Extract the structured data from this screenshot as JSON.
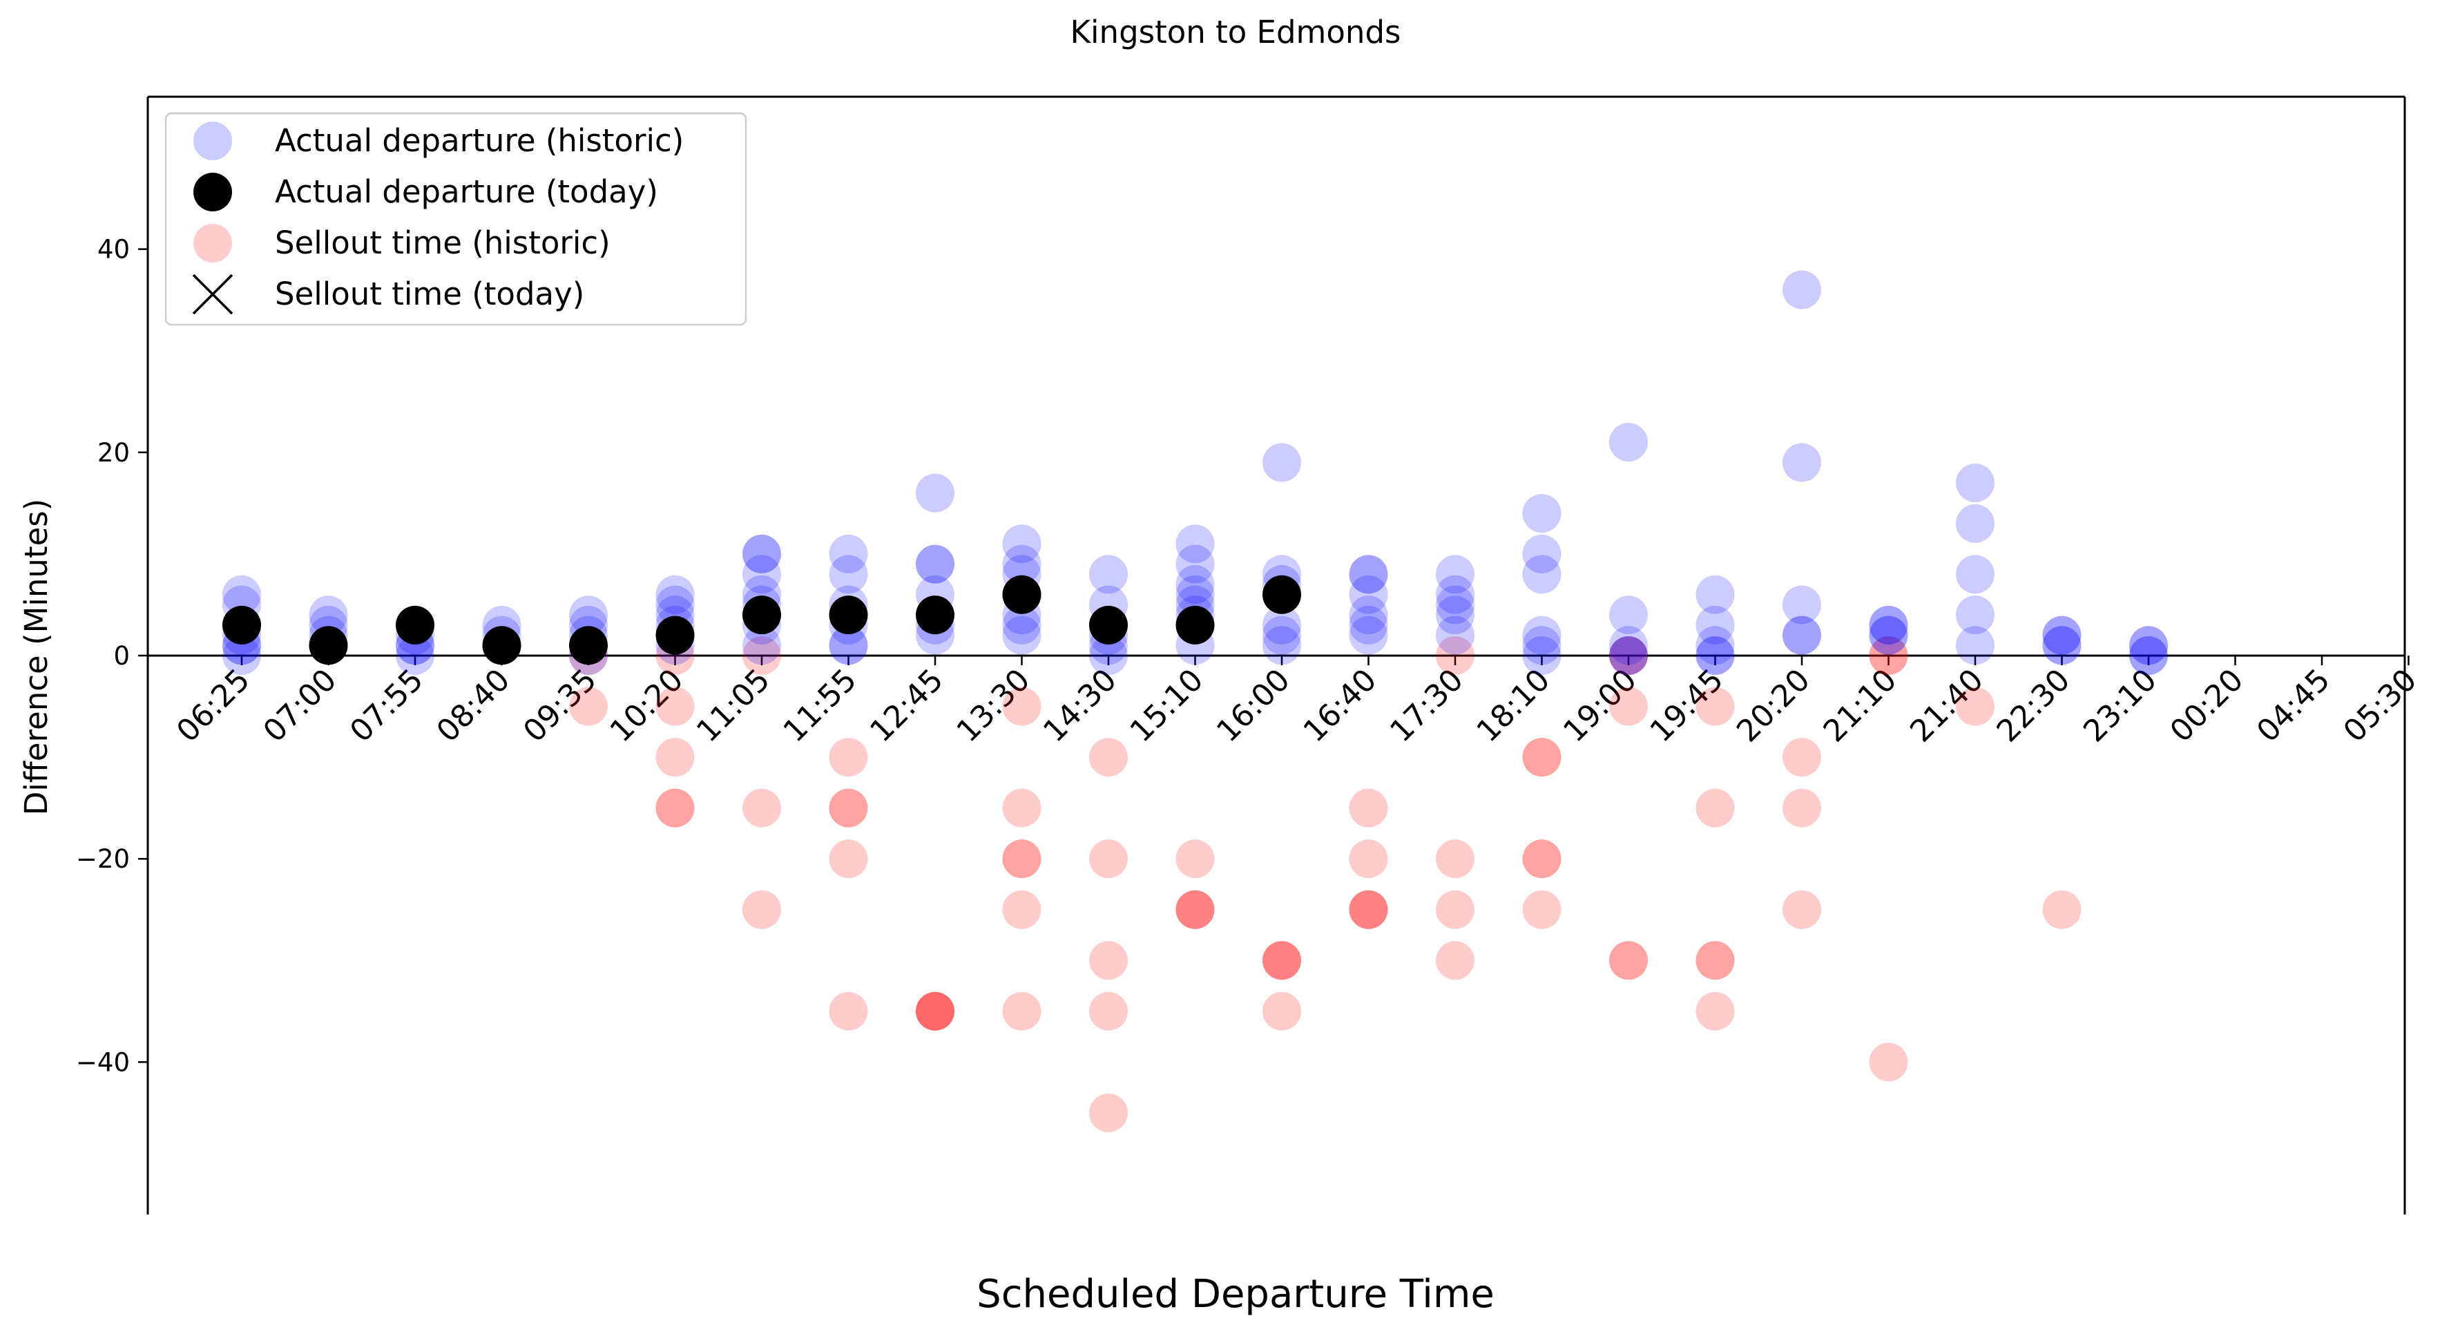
{
  "chart_data": {
    "type": "scatter",
    "title": "Kingston to Edmonds",
    "xlabel": "Scheduled Departure Time",
    "ylabel": "Difference (Minutes)",
    "ylim": [
      -55,
      55
    ],
    "yticks": [
      -40,
      -20,
      0,
      20,
      40
    ],
    "grid": false,
    "legend_placement": "top-left",
    "zero_line": true,
    "categories": [
      "06:25",
      "07:00",
      "07:55",
      "08:40",
      "09:35",
      "10:20",
      "11:05",
      "11:55",
      "12:45",
      "13:30",
      "14:30",
      "15:10",
      "16:00",
      "16:40",
      "17:30",
      "18:10",
      "19:00",
      "19:45",
      "20:20",
      "21:10",
      "21:40",
      "22:30",
      "23:10",
      "00:20",
      "04:45",
      "05:30"
    ],
    "colors": {
      "actual_historic": "#0000ff",
      "actual_today": "#000000",
      "sellout_historic": "#ff0000",
      "sellout_today": "#000000"
    },
    "legend": [
      {
        "label": "Actual departure (historic)",
        "marker": "circle",
        "color": "#0000ff",
        "opacity": 0.2
      },
      {
        "label": "Actual departure (today)",
        "marker": "circle",
        "color": "#000000",
        "opacity": 1
      },
      {
        "label": "Sellout time (historic)",
        "marker": "circle",
        "color": "#ff0000",
        "opacity": 0.2
      },
      {
        "label": "Sellout time (today)",
        "marker": "x",
        "color": "#000000",
        "opacity": 1
      }
    ],
    "series": [
      {
        "name": "Actual departure (historic)",
        "points": [
          {
            "x": "06:25",
            "y": 6
          },
          {
            "x": "06:25",
            "y": 5
          },
          {
            "x": "06:25",
            "y": 3
          },
          {
            "x": "06:25",
            "y": 2
          },
          {
            "x": "06:25",
            "y": 1
          },
          {
            "x": "06:25",
            "y": 1
          },
          {
            "x": "06:25",
            "y": 0
          },
          {
            "x": "07:00",
            "y": 4
          },
          {
            "x": "07:00",
            "y": 3
          },
          {
            "x": "07:00",
            "y": 2
          },
          {
            "x": "07:00",
            "y": 1
          },
          {
            "x": "07:55",
            "y": 3
          },
          {
            "x": "07:55",
            "y": 2
          },
          {
            "x": "07:55",
            "y": 1
          },
          {
            "x": "07:55",
            "y": 1
          },
          {
            "x": "07:55",
            "y": 0
          },
          {
            "x": "08:40",
            "y": 3
          },
          {
            "x": "08:40",
            "y": 2
          },
          {
            "x": "08:40",
            "y": 1
          },
          {
            "x": "09:35",
            "y": 4
          },
          {
            "x": "09:35",
            "y": 3
          },
          {
            "x": "09:35",
            "y": 2
          },
          {
            "x": "09:35",
            "y": 1
          },
          {
            "x": "09:35",
            "y": 0
          },
          {
            "x": "10:20",
            "y": 6
          },
          {
            "x": "10:20",
            "y": 5
          },
          {
            "x": "10:20",
            "y": 4
          },
          {
            "x": "10:20",
            "y": 3
          },
          {
            "x": "10:20",
            "y": 2
          },
          {
            "x": "10:20",
            "y": 1
          },
          {
            "x": "11:05",
            "y": 10
          },
          {
            "x": "11:05",
            "y": 10
          },
          {
            "x": "11:05",
            "y": 8
          },
          {
            "x": "11:05",
            "y": 6
          },
          {
            "x": "11:05",
            "y": 5
          },
          {
            "x": "11:05",
            "y": 3
          },
          {
            "x": "11:05",
            "y": 1
          },
          {
            "x": "11:55",
            "y": 10
          },
          {
            "x": "11:55",
            "y": 8
          },
          {
            "x": "11:55",
            "y": 5
          },
          {
            "x": "11:55",
            "y": 3
          },
          {
            "x": "11:55",
            "y": 1
          },
          {
            "x": "11:55",
            "y": 1
          },
          {
            "x": "12:45",
            "y": 16
          },
          {
            "x": "12:45",
            "y": 9
          },
          {
            "x": "12:45",
            "y": 9
          },
          {
            "x": "12:45",
            "y": 6
          },
          {
            "x": "12:45",
            "y": 3
          },
          {
            "x": "12:45",
            "y": 2
          },
          {
            "x": "13:30",
            "y": 11
          },
          {
            "x": "13:30",
            "y": 9
          },
          {
            "x": "13:30",
            "y": 8
          },
          {
            "x": "13:30",
            "y": 6
          },
          {
            "x": "13:30",
            "y": 4
          },
          {
            "x": "13:30",
            "y": 3
          },
          {
            "x": "13:30",
            "y": 2
          },
          {
            "x": "14:30",
            "y": 8
          },
          {
            "x": "14:30",
            "y": 5
          },
          {
            "x": "14:30",
            "y": 3
          },
          {
            "x": "14:30",
            "y": 2
          },
          {
            "x": "14:30",
            "y": 1
          },
          {
            "x": "14:30",
            "y": 0
          },
          {
            "x": "15:10",
            "y": 11
          },
          {
            "x": "15:10",
            "y": 9
          },
          {
            "x": "15:10",
            "y": 7
          },
          {
            "x": "15:10",
            "y": 6
          },
          {
            "x": "15:10",
            "y": 5
          },
          {
            "x": "15:10",
            "y": 4
          },
          {
            "x": "15:10",
            "y": 1
          },
          {
            "x": "16:00",
            "y": 19
          },
          {
            "x": "16:00",
            "y": 8
          },
          {
            "x": "16:00",
            "y": 7
          },
          {
            "x": "16:00",
            "y": 3
          },
          {
            "x": "16:00",
            "y": 2
          },
          {
            "x": "16:00",
            "y": 1
          },
          {
            "x": "16:40",
            "y": 8
          },
          {
            "x": "16:40",
            "y": 8
          },
          {
            "x": "16:40",
            "y": 6
          },
          {
            "x": "16:40",
            "y": 4
          },
          {
            "x": "16:40",
            "y": 3
          },
          {
            "x": "16:40",
            "y": 2
          },
          {
            "x": "17:30",
            "y": 8
          },
          {
            "x": "17:30",
            "y": 6
          },
          {
            "x": "17:30",
            "y": 5
          },
          {
            "x": "17:30",
            "y": 4
          },
          {
            "x": "17:30",
            "y": 2
          },
          {
            "x": "18:10",
            "y": 14
          },
          {
            "x": "18:10",
            "y": 10
          },
          {
            "x": "18:10",
            "y": 8
          },
          {
            "x": "18:10",
            "y": 2
          },
          {
            "x": "18:10",
            "y": 1
          },
          {
            "x": "18:10",
            "y": 0
          },
          {
            "x": "19:00",
            "y": 21
          },
          {
            "x": "19:00",
            "y": 4
          },
          {
            "x": "19:00",
            "y": 1
          },
          {
            "x": "19:00",
            "y": 0
          },
          {
            "x": "19:00",
            "y": 0
          },
          {
            "x": "19:45",
            "y": 6
          },
          {
            "x": "19:45",
            "y": 3
          },
          {
            "x": "19:45",
            "y": 1
          },
          {
            "x": "19:45",
            "y": 0
          },
          {
            "x": "19:45",
            "y": 0
          },
          {
            "x": "20:20",
            "y": 36
          },
          {
            "x": "20:20",
            "y": 19
          },
          {
            "x": "20:20",
            "y": 5
          },
          {
            "x": "20:20",
            "y": 2
          },
          {
            "x": "20:20",
            "y": 2
          },
          {
            "x": "21:10",
            "y": 3
          },
          {
            "x": "21:10",
            "y": 3
          },
          {
            "x": "21:10",
            "y": 2
          },
          {
            "x": "21:10",
            "y": 2
          },
          {
            "x": "21:40",
            "y": 17
          },
          {
            "x": "21:40",
            "y": 13
          },
          {
            "x": "21:40",
            "y": 8
          },
          {
            "x": "21:40",
            "y": 4
          },
          {
            "x": "21:40",
            "y": 1
          },
          {
            "x": "22:30",
            "y": 2
          },
          {
            "x": "22:30",
            "y": 2
          },
          {
            "x": "22:30",
            "y": 1
          },
          {
            "x": "22:30",
            "y": 1
          },
          {
            "x": "23:10",
            "y": 1
          },
          {
            "x": "23:10",
            "y": 1
          },
          {
            "x": "23:10",
            "y": 0
          },
          {
            "x": "23:10",
            "y": 0
          }
        ]
      },
      {
        "name": "Actual departure (today)",
        "points": [
          {
            "x": "06:25",
            "y": 3
          },
          {
            "x": "07:00",
            "y": 1
          },
          {
            "x": "07:55",
            "y": 3
          },
          {
            "x": "08:40",
            "y": 1
          },
          {
            "x": "09:35",
            "y": 1
          },
          {
            "x": "10:20",
            "y": 2
          },
          {
            "x": "11:05",
            "y": 4
          },
          {
            "x": "11:55",
            "y": 4
          },
          {
            "x": "12:45",
            "y": 4
          },
          {
            "x": "13:30",
            "y": 6
          },
          {
            "x": "14:30",
            "y": 3
          },
          {
            "x": "15:10",
            "y": 3
          },
          {
            "x": "16:00",
            "y": 6
          }
        ]
      },
      {
        "name": "Sellout time (historic)",
        "points": [
          {
            "x": "09:35",
            "y": 0
          },
          {
            "x": "09:35",
            "y": -5
          },
          {
            "x": "10:20",
            "y": 0
          },
          {
            "x": "10:20",
            "y": -5
          },
          {
            "x": "10:20",
            "y": -10
          },
          {
            "x": "10:20",
            "y": -15
          },
          {
            "x": "10:20",
            "y": -15
          },
          {
            "x": "11:05",
            "y": 0
          },
          {
            "x": "11:05",
            "y": -15
          },
          {
            "x": "11:05",
            "y": -25
          },
          {
            "x": "11:55",
            "y": -10
          },
          {
            "x": "11:55",
            "y": -15
          },
          {
            "x": "11:55",
            "y": -15
          },
          {
            "x": "11:55",
            "y": -20
          },
          {
            "x": "11:55",
            "y": -35
          },
          {
            "x": "12:45",
            "y": -35
          },
          {
            "x": "12:45",
            "y": -35
          },
          {
            "x": "12:45",
            "y": -35
          },
          {
            "x": "12:45",
            "y": -35
          },
          {
            "x": "13:30",
            "y": -5
          },
          {
            "x": "13:30",
            "y": -15
          },
          {
            "x": "13:30",
            "y": -20
          },
          {
            "x": "13:30",
            "y": -20
          },
          {
            "x": "13:30",
            "y": -25
          },
          {
            "x": "13:30",
            "y": -35
          },
          {
            "x": "14:30",
            "y": -10
          },
          {
            "x": "14:30",
            "y": -20
          },
          {
            "x": "14:30",
            "y": -30
          },
          {
            "x": "14:30",
            "y": -35
          },
          {
            "x": "14:30",
            "y": -45
          },
          {
            "x": "15:10",
            "y": -20
          },
          {
            "x": "15:10",
            "y": -25
          },
          {
            "x": "15:10",
            "y": -25
          },
          {
            "x": "15:10",
            "y": -25
          },
          {
            "x": "16:00",
            "y": -30
          },
          {
            "x": "16:00",
            "y": -30
          },
          {
            "x": "16:00",
            "y": -30
          },
          {
            "x": "16:00",
            "y": -35
          },
          {
            "x": "16:40",
            "y": -15
          },
          {
            "x": "16:40",
            "y": -20
          },
          {
            "x": "16:40",
            "y": -25
          },
          {
            "x": "16:40",
            "y": -25
          },
          {
            "x": "16:40",
            "y": -25
          },
          {
            "x": "17:30",
            "y": 0
          },
          {
            "x": "17:30",
            "y": -20
          },
          {
            "x": "17:30",
            "y": -25
          },
          {
            "x": "17:30",
            "y": -30
          },
          {
            "x": "18:10",
            "y": -10
          },
          {
            "x": "18:10",
            "y": -10
          },
          {
            "x": "18:10",
            "y": -20
          },
          {
            "x": "18:10",
            "y": -20
          },
          {
            "x": "18:10",
            "y": -25
          },
          {
            "x": "19:00",
            "y": 0
          },
          {
            "x": "19:00",
            "y": 0
          },
          {
            "x": "19:00",
            "y": -5
          },
          {
            "x": "19:00",
            "y": -30
          },
          {
            "x": "19:00",
            "y": -30
          },
          {
            "x": "19:45",
            "y": -5
          },
          {
            "x": "19:45",
            "y": -15
          },
          {
            "x": "19:45",
            "y": -30
          },
          {
            "x": "19:45",
            "y": -30
          },
          {
            "x": "19:45",
            "y": -35
          },
          {
            "x": "20:20",
            "y": -10
          },
          {
            "x": "20:20",
            "y": -15
          },
          {
            "x": "20:20",
            "y": -25
          },
          {
            "x": "21:10",
            "y": 0
          },
          {
            "x": "21:10",
            "y": 0
          },
          {
            "x": "21:10",
            "y": -40
          },
          {
            "x": "21:40",
            "y": -5
          },
          {
            "x": "22:30",
            "y": -25
          }
        ]
      },
      {
        "name": "Sellout time (today)",
        "points": []
      }
    ]
  }
}
